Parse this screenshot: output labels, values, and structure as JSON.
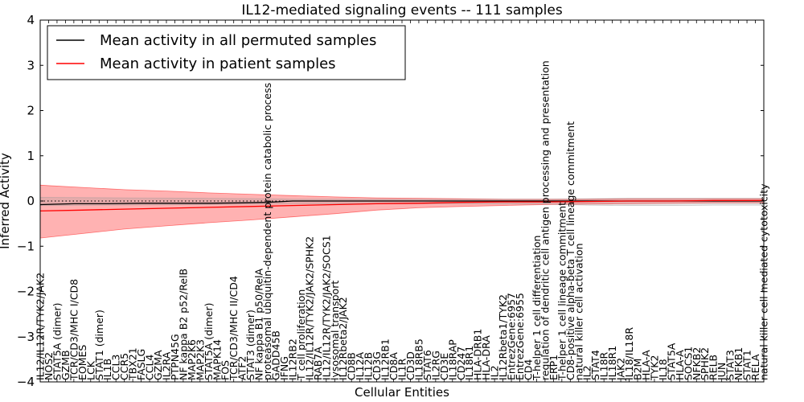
{
  "chart_data": {
    "type": "line",
    "title": "IL12-mediated signaling events -- 111 samples",
    "xlabel": "Cellular Entities",
    "ylabel": "Inferred Activity",
    "ylim": [
      -4,
      4
    ],
    "yticks": [
      -4,
      -3,
      -2,
      -1,
      0,
      1,
      2,
      3,
      4
    ],
    "legend": {
      "position": "top-left",
      "entries": [
        {
          "label": "Mean activity in all permuted samples",
          "color": "#000000"
        },
        {
          "label": "Mean activity in patient samples",
          "color": "#ff0000"
        }
      ]
    },
    "categories": [
      "IL12/IL12R/TYK2/JAK2",
      "NOS2",
      "STAT5A (dimer)",
      "GZMB",
      "TCR/CD3/MHC I/CD8",
      "EOMES",
      "LCK",
      "STAT1 (dimer)",
      "IL1B",
      "CCL3",
      "CCR5",
      "TBX21",
      "FASLG",
      "CCL4",
      "GZMA",
      "IL2RA",
      "PTPN45G",
      "NF kappa B2 p52/RelB",
      "MAP2K6",
      "MAP2K3",
      "STAT5A (dimer)",
      "MAPK14",
      "FOS",
      "TCR/CD3/MHC II/CD4",
      "ATF2",
      "STAT3 (dimer)",
      "NF kappa B1 p50/RelA",
      "proteasomal ubiquitin-dependent protein catabolic process",
      "GADD45B",
      "IFNG",
      "IL12RB2",
      "T cell proliferation",
      "IL12/IL12R/TYK2/JAK2/SPHK2",
      "RAB7A",
      "IL12/IL12R/TYK2/JAK2/SOCS1",
      "lysosomal transport",
      "IL12Rbeta2/JAK2",
      "CD8B",
      "IL12A",
      "IL12B",
      "CD3G",
      "IL12RB1",
      "CD8A",
      "IL1R",
      "CD3D",
      "IL18RB5",
      "STAT6",
      "IL2RG",
      "CD3E",
      "IL18RAP",
      "CD247",
      "IL18R1",
      "HLA-DRB1",
      "HLA-DRA",
      "IL2",
      "IL12Rbeta1/TYK2",
      "EntrezGene:6957",
      "EntrezGene:6955",
      "CD4",
      "T-helper 1 cell differentiation",
      "regulation of dendritic cell antigen processing and presentation",
      "ERP1",
      "T-helper 1 cell lineage commitment",
      "CD8-positive alpha-beta T cell lineage commitment",
      "natural killer cell activation",
      "IL2",
      "STAT4",
      "IL18R",
      "IL18R1",
      "JAK2",
      "IL18/IL18R",
      "B2M",
      "HLA-A",
      "TYK2",
      "IL18",
      "STAT5A",
      "HLA-A",
      "SOCS1",
      "NFKB2",
      "SPHK2",
      "RELB",
      "JUN",
      "STAT3",
      "NFKB1",
      "STAT1",
      "RELA",
      "natural killer cell mediated cytotoxicity"
    ],
    "series": [
      {
        "name": "Mean activity in all permuted samples",
        "color": "#000000",
        "x": [
          0,
          4,
          8,
          12,
          16,
          20,
          24,
          27,
          30,
          34,
          38,
          42,
          50,
          60,
          70,
          78,
          86
        ],
        "values": [
          -0.08,
          -0.06,
          -0.06,
          -0.05,
          -0.05,
          -0.05,
          -0.04,
          -0.03,
          0.0,
          0.0,
          0.0,
          0.0,
          0.0,
          0.0,
          0.0,
          0.0,
          0.0
        ]
      },
      {
        "name": "Mean activity in patient samples",
        "color": "#ff0000",
        "x": [
          0,
          5,
          10,
          15,
          20,
          25,
          30,
          35,
          40,
          45,
          50,
          55,
          60,
          65,
          70,
          75,
          80,
          86
        ],
        "values": [
          -0.22,
          -0.2,
          -0.18,
          -0.16,
          -0.14,
          -0.12,
          -0.1,
          -0.08,
          -0.06,
          -0.05,
          -0.03,
          -0.02,
          -0.02,
          -0.01,
          0.0,
          0.0,
          0.01,
          0.01
        ]
      }
    ],
    "bands": [
      {
        "name": "patient range",
        "color": "#ff0000",
        "x": [
          0,
          5,
          10,
          15,
          20,
          25,
          30,
          35,
          40,
          45,
          50,
          55,
          60,
          65,
          70,
          75,
          80,
          86
        ],
        "upper": [
          0.35,
          0.3,
          0.25,
          0.22,
          0.18,
          0.15,
          0.12,
          0.09,
          0.07,
          0.06,
          0.05,
          0.04,
          0.04,
          0.04,
          0.05,
          0.05,
          0.05,
          0.05
        ],
        "lower": [
          -0.82,
          -0.72,
          -0.62,
          -0.55,
          -0.48,
          -0.42,
          -0.35,
          -0.28,
          -0.2,
          -0.15,
          -0.12,
          -0.1,
          -0.08,
          -0.07,
          -0.06,
          -0.05,
          -0.04,
          -0.04
        ]
      },
      {
        "name": "permuted range",
        "color": "#999999",
        "x": [
          0,
          10,
          20,
          27,
          30,
          40,
          50,
          60,
          65,
          70,
          75,
          80,
          86
        ],
        "upper": [
          0.08,
          0.07,
          0.06,
          0.05,
          0.04,
          0.04,
          0.04,
          0.04,
          0.05,
          0.06,
          0.06,
          0.06,
          0.06
        ],
        "lower": [
          -0.1,
          -0.09,
          -0.08,
          -0.07,
          -0.06,
          -0.06,
          -0.06,
          -0.07,
          -0.09,
          -0.1,
          -0.1,
          -0.09,
          -0.09
        ]
      }
    ],
    "reference_line": {
      "y": 0,
      "style": "dotted"
    }
  }
}
